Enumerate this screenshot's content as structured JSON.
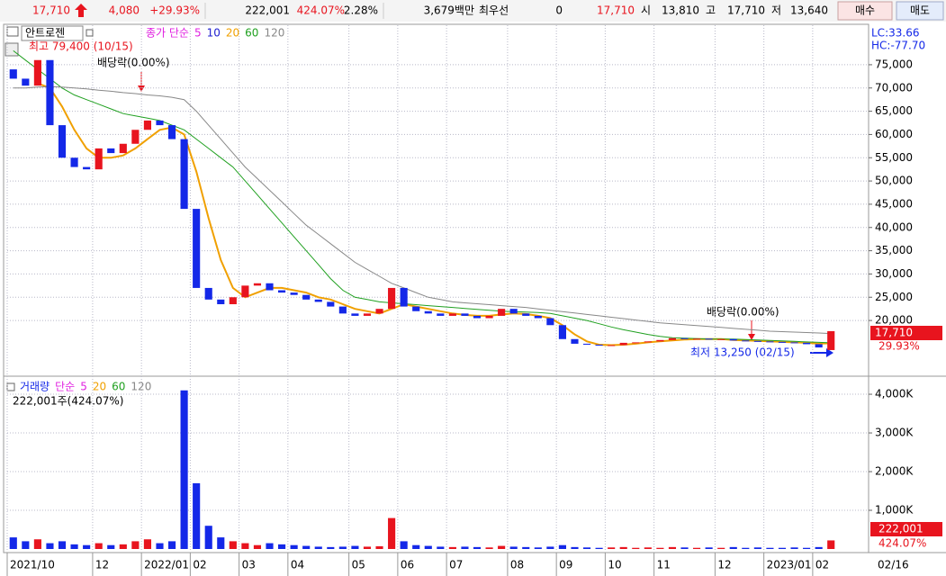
{
  "header": {
    "price": "17,710",
    "change": "4,080",
    "change_rate": "+29.93%",
    "volume": "222,001",
    "volume_ratio": "424.07%",
    "turnover": "2.28%",
    "amount": "3,679백만",
    "best_label": "최우선",
    "best": "0",
    "best_price": "17,710",
    "open_label": "시",
    "open": "13,810",
    "high_label": "고",
    "high": "17,710",
    "low_label": "저",
    "low": "13,640",
    "buy": "매수",
    "sell": "매도"
  },
  "chart_data": [
    {
      "type": "candlestick",
      "name": "안트로젠",
      "legend_label": "종가 단순",
      "legend_items": [
        {
          "label": "5",
          "color": "#e020e0"
        },
        {
          "label": "10",
          "color": "#2020d0"
        },
        {
          "label": "20",
          "color": "#f0a000"
        },
        {
          "label": "60",
          "color": "#20a020"
        },
        {
          "label": "120",
          "color": "#888888"
        }
      ],
      "up_color": "#e8141e",
      "down_color": "#1428e8",
      "open": [
        74000,
        72000,
        70500,
        76000,
        62000,
        55000,
        53000,
        52500,
        57000,
        56000,
        58000,
        61000,
        63000,
        62000,
        59000,
        44000,
        27000,
        24500,
        23500,
        25000,
        27500,
        28000,
        26500,
        26000,
        25500,
        24500,
        24000,
        23000,
        21500,
        21000,
        21500,
        22500,
        27000,
        23000,
        22000,
        21500,
        21000,
        21500,
        21000,
        20500,
        21000,
        22500,
        21500,
        21000,
        20500,
        19000,
        16000,
        15000,
        14800,
        14600,
        14700,
        15200,
        15300,
        15500,
        15800,
        16200,
        16000,
        16100,
        15900,
        16000,
        15700,
        15600,
        15500,
        15400,
        15300,
        15200,
        14900,
        13640
      ],
      "close": [
        72000,
        70500,
        76000,
        62000,
        55000,
        53000,
        52500,
        57000,
        56000,
        58000,
        61000,
        63000,
        62000,
        59000,
        44000,
        27000,
        24500,
        23500,
        25000,
        27500,
        28000,
        26500,
        26000,
        25500,
        24500,
        24000,
        23000,
        21500,
        21000,
        21500,
        22500,
        27000,
        23000,
        22000,
        21500,
        21000,
        21500,
        21000,
        20500,
        21000,
        22500,
        21500,
        21000,
        20500,
        19000,
        16000,
        15000,
        14800,
        14600,
        14700,
        15200,
        15300,
        15500,
        15800,
        16200,
        16000,
        16100,
        15900,
        16000,
        15700,
        15600,
        15500,
        15400,
        15300,
        15200,
        14900,
        14200,
        17710
      ],
      "series": [
        {
          "color": "#f0a000",
          "values": [
            null,
            null,
            71000,
            70000,
            66000,
            61000,
            57000,
            55000,
            55000,
            55500,
            57000,
            59000,
            61000,
            61500,
            60000,
            52000,
            42000,
            33000,
            27000,
            25000,
            26000,
            27000,
            27000,
            26500,
            26000,
            25000,
            24500,
            23500,
            22500,
            22000,
            21500,
            22500,
            23500,
            23000,
            22500,
            22000,
            21500,
            21200,
            21000,
            21000,
            21300,
            21500,
            21400,
            21000,
            20500,
            19000,
            17000,
            15500,
            14800,
            14700,
            14800,
            15000,
            15300,
            15500,
            15700,
            15900,
            16000,
            16000,
            16000,
            15800,
            15700,
            15600,
            15500,
            15400,
            15300,
            15200,
            15000,
            15100
          ]
        },
        {
          "color": "#20a020",
          "values": [
            78000,
            76000,
            74000,
            72000,
            70000,
            68500,
            67500,
            66500,
            65500,
            64500,
            64000,
            63500,
            63000,
            62000,
            61000,
            59000,
            57000,
            55000,
            53000,
            50000,
            47000,
            44000,
            41000,
            38000,
            35000,
            32000,
            29000,
            26500,
            25000,
            24500,
            24000,
            23800,
            23600,
            23400,
            23200,
            23000,
            22800,
            22600,
            22400,
            22200,
            22000,
            21900,
            21800,
            21700,
            21500,
            21000,
            20500,
            20000,
            19300,
            18600,
            18000,
            17500,
            17000,
            16600,
            16300,
            16200,
            16100,
            16000,
            16000,
            16000,
            15900,
            15800,
            15700,
            15600,
            15500,
            15400,
            15300,
            15200
          ]
        },
        {
          "color": "#888888",
          "values": [
            70000,
            70000,
            70200,
            70300,
            70200,
            70000,
            69800,
            69500,
            69300,
            69000,
            68800,
            68500,
            68300,
            68000,
            67500,
            65000,
            62000,
            59000,
            56000,
            53000,
            50500,
            48000,
            45500,
            43000,
            40500,
            38500,
            36500,
            34500,
            32500,
            31000,
            29500,
            28000,
            27000,
            26000,
            25000,
            24500,
            24000,
            23800,
            23600,
            23400,
            23200,
            23000,
            22800,
            22500,
            22200,
            21900,
            21600,
            21300,
            21000,
            20700,
            20400,
            20100,
            19800,
            19500,
            19300,
            19100,
            18900,
            18700,
            18500,
            18300,
            18100,
            17900,
            17700,
            17600,
            17500,
            17400,
            17300,
            17200
          ]
        }
      ],
      "ylim": [
        8600,
        83500
      ],
      "yticks": [
        {
          "value": 20000,
          "label": "20,000"
        },
        {
          "value": 25000,
          "label": "25,000"
        },
        {
          "value": 30000,
          "label": "30,000"
        },
        {
          "value": 35000,
          "label": "35,000"
        },
        {
          "value": 40000,
          "label": "40,000"
        },
        {
          "value": 45000,
          "label": "45,000"
        },
        {
          "value": 50000,
          "label": "50,000"
        },
        {
          "value": 55000,
          "label": "55,000"
        },
        {
          "value": 60000,
          "label": "60,000"
        },
        {
          "value": 65000,
          "label": "65,000"
        },
        {
          "value": 70000,
          "label": "70,000"
        },
        {
          "value": 75000,
          "label": "75,000"
        }
      ],
      "grid": true,
      "annotations": {
        "high": "최고 79,400 (10/15)",
        "dividend_1": "배당락(0.00%)",
        "dividend_2": "배당락(0.00%)",
        "low": "최저 13,250 (02/15)",
        "lc": "LC:33.66",
        "hc": "HC:-77.70",
        "last_price": "17,710",
        "last_change": "29.93%"
      }
    },
    {
      "type": "bar",
      "name": "거래량",
      "legend_label": "단순",
      "legend_items": [
        {
          "label": "5",
          "color": "#e020e0"
        },
        {
          "label": "20",
          "color": "#f0a000"
        },
        {
          "label": "60",
          "color": "#20a020"
        },
        {
          "label": "120",
          "color": "#888888"
        }
      ],
      "note": "222,001주(424.07%)",
      "categories": [
        "2021/10",
        null,
        null,
        null,
        null,
        null,
        null,
        "12",
        null,
        null,
        null,
        "2022/01",
        null,
        null,
        null,
        "02",
        null,
        null,
        null,
        "03",
        null,
        null,
        null,
        "04",
        null,
        null,
        null,
        null,
        "05",
        null,
        null,
        null,
        "06",
        null,
        null,
        null,
        "07",
        null,
        null,
        null,
        null,
        "08",
        null,
        null,
        null,
        "09",
        null,
        null,
        null,
        "10",
        null,
        null,
        null,
        "11",
        null,
        null,
        null,
        null,
        "12",
        null,
        null,
        null,
        "2023/01",
        null,
        null,
        null,
        "02",
        null
      ],
      "end_label": "02/16",
      "values": [
        300000,
        200000,
        250000,
        150000,
        200000,
        120000,
        100000,
        150000,
        100000,
        120000,
        200000,
        250000,
        150000,
        200000,
        4100000,
        1700000,
        600000,
        300000,
        200000,
        150000,
        100000,
        150000,
        120000,
        100000,
        80000,
        60000,
        50000,
        60000,
        80000,
        60000,
        70000,
        800000,
        200000,
        100000,
        80000,
        60000,
        50000,
        60000,
        50000,
        40000,
        80000,
        60000,
        50000,
        40000,
        60000,
        100000,
        50000,
        40000,
        30000,
        40000,
        50000,
        30000,
        40000,
        30000,
        50000,
        40000,
        30000,
        40000,
        30000,
        50000,
        30000,
        40000,
        30000,
        30000,
        40000,
        30000,
        50000,
        222001
      ],
      "ylim": [
        0,
        4420000
      ],
      "yticks": [
        {
          "value": 1000000,
          "label": "1,000K"
        },
        {
          "value": 2000000,
          "label": "2,000K"
        },
        {
          "value": 3000000,
          "label": "3,000K"
        },
        {
          "value": 4000000,
          "label": "4,000K"
        }
      ],
      "grid": true,
      "annotations": {
        "last_volume": "222,001",
        "last_ratio": "424.07%"
      }
    }
  ]
}
